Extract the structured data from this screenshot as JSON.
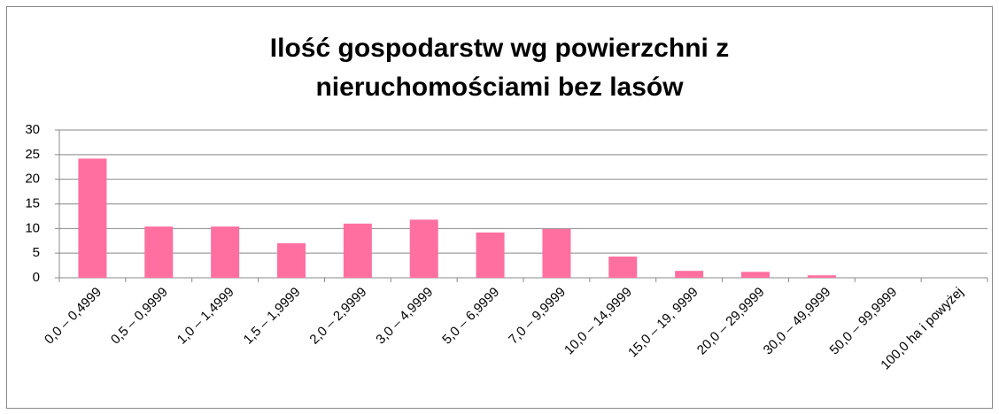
{
  "chart_data": {
    "type": "bar",
    "title": "Ilość gospodarstw wg powierzchni z nieruchomościami bez lasów",
    "categories": [
      "0,0 – 0,4999",
      "0,5 – 0,9999",
      "1,0 – 1,4999",
      "1,5 – 1,9999",
      "2,0 – 2,9999",
      "3,0 – 4,9999",
      "5,0 – 6,9999",
      "7,0 – 9,9999",
      "10,0 – 14,9999",
      "15,0 – 19, 9999",
      "20,0 – 29,9999",
      "30,0 – 49,9999",
      "50,0 – 99,9999",
      "100,0 ha i powyżej"
    ],
    "values": [
      24.2,
      10.4,
      10.4,
      7.0,
      11.0,
      11.8,
      9.2,
      9.9,
      4.3,
      1.4,
      1.2,
      0.5,
      0,
      0
    ],
    "color": "#ff6fa0",
    "ylim": [
      0,
      30
    ],
    "yticks": [
      0,
      5,
      10,
      15,
      20,
      25,
      30
    ],
    "grid": true
  }
}
